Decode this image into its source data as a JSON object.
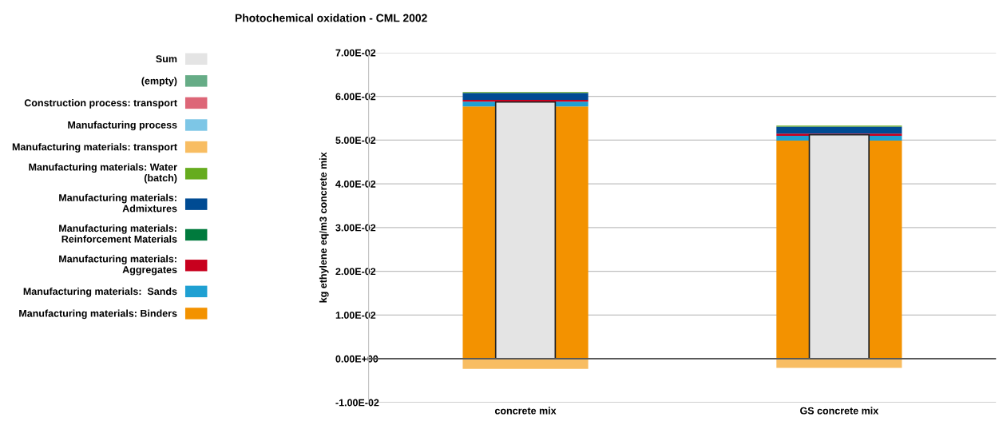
{
  "chart_data": {
    "type": "bar",
    "title": "Photochemical oxidation - CML 2002",
    "ylabel": "kg ethylene eq/m3 concrete mix",
    "categories": [
      "concrete mix",
      "GS concrete mix"
    ],
    "series": [
      {
        "name": "Manufacturing materials: Binders",
        "color": "#f39200",
        "base": [
          0,
          0
        ],
        "values": [
          0.0577,
          0.0499
        ]
      },
      {
        "name": "Manufacturing materials:  Sands",
        "color": "#1fa0d2",
        "base": [
          0.0577,
          0.0499
        ],
        "values": [
          0.0011,
          0.0011
        ]
      },
      {
        "name": "Manufacturing materials:\nAggregates",
        "color": "#c8001e",
        "base": [
          0.0588,
          0.051
        ],
        "values": [
          0.0004,
          0.0005
        ]
      },
      {
        "name": "Manufacturing materials:\nReinforcement Materials",
        "color": "#007a3d",
        "values": [
          null,
          null
        ]
      },
      {
        "name": "Manufacturing materials:\nAdmixtures",
        "color": "#004b93",
        "base": [
          0.0592,
          0.0515
        ],
        "values": [
          0.0016,
          0.0016
        ]
      },
      {
        "name": "Manufacturing materials: Water\n(batch)",
        "color": "#66ac1e",
        "base": [
          0.0608,
          0.0531
        ],
        "values": [
          0.0002,
          0.0002
        ]
      },
      {
        "name": "Manufacturing materials: transport",
        "color": "#f8bd62",
        "base": [
          0,
          0
        ],
        "values": [
          -0.0023,
          -0.0021
        ]
      },
      {
        "name": "Manufacturing process",
        "color": "#7dc6e6",
        "values": [
          null,
          null
        ]
      },
      {
        "name": "Construction process: transport",
        "color": "#dd6677",
        "values": [
          null,
          null
        ]
      },
      {
        "name": "(empty)",
        "color": "#66ac86",
        "values": [
          null,
          null
        ]
      },
      {
        "name": "Sum",
        "color": "#e4e4e4",
        "base": [
          0,
          0
        ],
        "values": [
          0.0587,
          0.0512
        ]
      }
    ],
    "ylim": [
      -0.01,
      0.07
    ],
    "yticks": [
      {
        "value": -0.01,
        "label": "-1.00E-02"
      },
      {
        "value": 0,
        "label": "0.00E+00"
      },
      {
        "value": 0.01,
        "label": "1.00E-02"
      },
      {
        "value": 0.02,
        "label": "2.00E-02"
      },
      {
        "value": 0.03,
        "label": "3.00E-02"
      },
      {
        "value": 0.04,
        "label": "4.00E-02"
      },
      {
        "value": 0.05,
        "label": "5.00E-02"
      },
      {
        "value": 0.06,
        "label": "6.00E-02"
      },
      {
        "value": 0.07,
        "label": "7.00E-02"
      }
    ],
    "ref_lines": [
      {
        "axis": "y",
        "value": 0,
        "color": "#595959"
      }
    ],
    "grid": "y",
    "legend": "left"
  }
}
